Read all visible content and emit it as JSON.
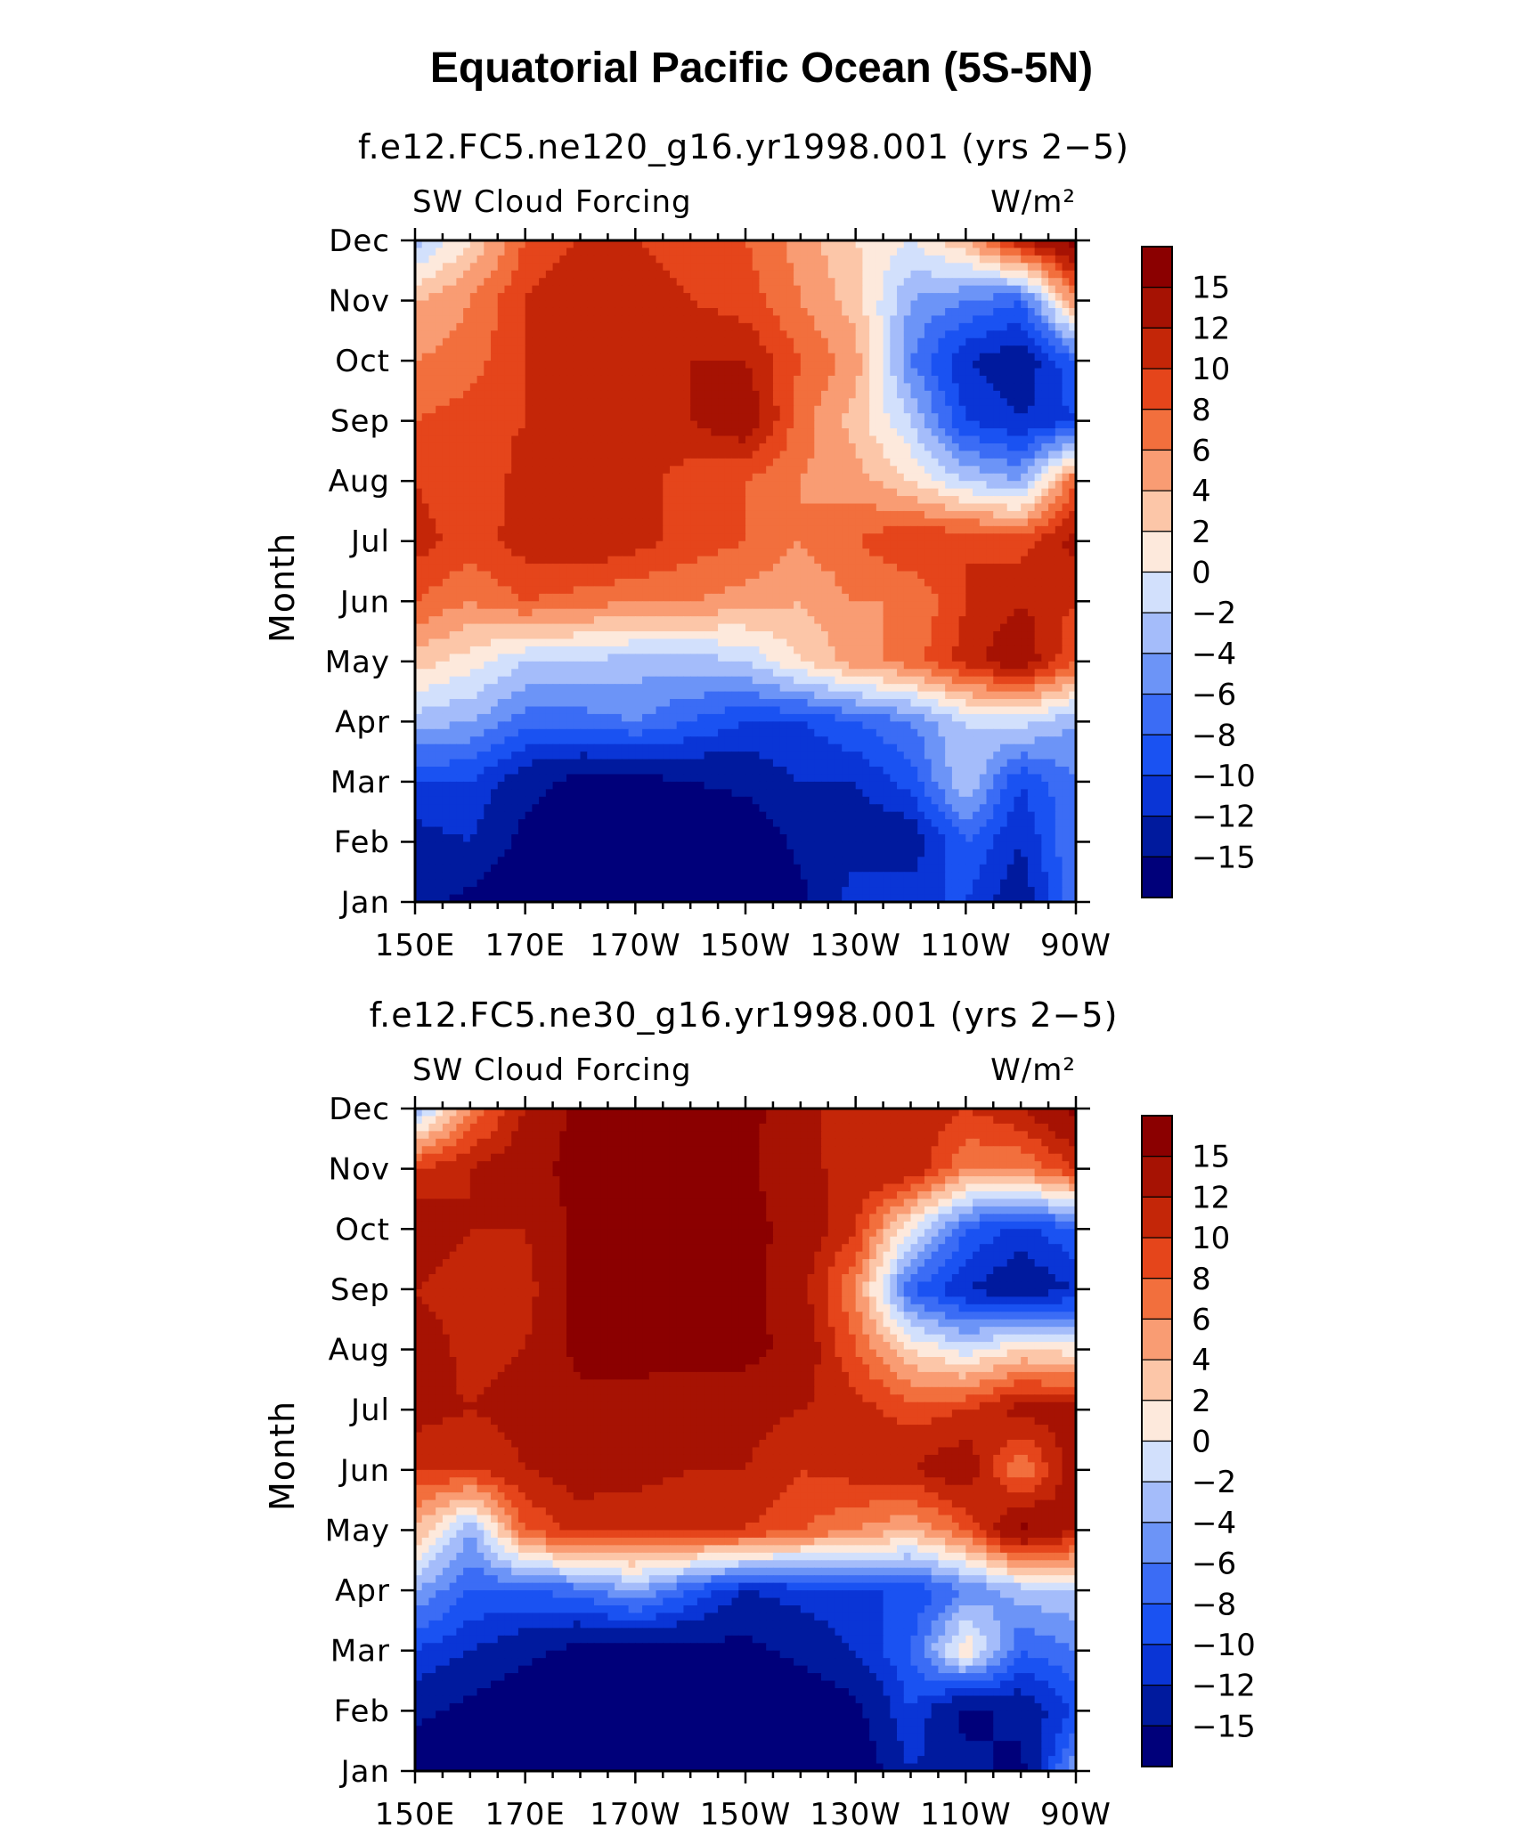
{
  "title": "Equatorial Pacific Ocean (5S-5N)",
  "chart_data": [
    {
      "type": "heatmap",
      "title": "f.e12.FC5.ne120_g16.yr1998.001 (yrs 2−5)",
      "left_label": "SW Cloud Forcing",
      "units": "W/m²",
      "ylabel": "Month",
      "x_tick_labels": [
        "150E",
        "170E",
        "170W",
        "150W",
        "130W",
        "110W",
        "90W"
      ],
      "y_tick_labels": [
        "Jan",
        "Feb",
        "Mar",
        "Apr",
        "May",
        "Jun",
        "Jul",
        "Aug",
        "Sep",
        "Oct",
        "Nov",
        "Dec"
      ],
      "xlim": [
        150,
        270
      ],
      "x": [
        150,
        160,
        170,
        180,
        190,
        200,
        210,
        220,
        230,
        240,
        250,
        260,
        270
      ],
      "z": [
        [
          -14,
          -16,
          -18,
          -18,
          -18,
          -18,
          -18,
          -16,
          -10,
          -10,
          -10,
          -14,
          -6
        ],
        [
          -13,
          -12,
          -16,
          -18,
          -18,
          -18,
          -18,
          -14,
          -14,
          -14,
          -8,
          -12,
          -6
        ],
        [
          -10,
          -10,
          -14,
          -16,
          -16,
          -15,
          -14,
          -12,
          -12,
          -9,
          -2,
          -10,
          -6
        ],
        [
          -3,
          -4,
          -7,
          -7,
          -6,
          -8,
          -10,
          -10,
          -8,
          -6,
          -2,
          -1,
          -4
        ],
        [
          3,
          1,
          -2,
          -2,
          -3,
          -3,
          -2,
          2,
          5,
          7,
          11,
          14,
          8
        ],
        [
          8,
          6,
          8,
          7,
          6,
          6,
          5,
          4,
          6,
          6,
          10,
          12,
          10
        ],
        [
          11,
          9,
          11,
          12,
          11,
          9,
          8,
          6,
          8,
          10,
          10,
          9,
          13
        ],
        [
          10,
          8,
          11,
          12,
          11,
          9,
          8,
          6,
          5,
          2,
          -2,
          -4,
          8
        ],
        [
          8,
          9,
          10,
          10,
          10,
          12,
          14,
          7,
          3,
          -2,
          -10,
          -12,
          -10
        ],
        [
          6,
          7,
          10,
          11,
          10,
          12,
          12,
          8,
          5,
          -6,
          -12,
          -14,
          -8
        ],
        [
          4,
          6,
          10,
          12,
          11,
          10,
          9,
          6,
          3,
          -4,
          -6,
          -8,
          6
        ],
        [
          -3,
          2,
          8,
          10,
          10,
          9,
          8,
          5,
          2,
          0,
          4,
          12,
          16
        ]
      ]
    },
    {
      "type": "heatmap",
      "title": "f.e12.FC5.ne30_g16.yr1998.001 (yrs 2−5)",
      "left_label": "SW Cloud Forcing",
      "units": "W/m²",
      "ylabel": "Month",
      "x_tick_labels": [
        "150E",
        "170E",
        "170W",
        "150W",
        "130W",
        "110W",
        "90W"
      ],
      "y_tick_labels": [
        "Jan",
        "Feb",
        "Mar",
        "Apr",
        "May",
        "Jun",
        "Jul",
        "Aug",
        "Sep",
        "Oct",
        "Nov",
        "Dec"
      ],
      "xlim": [
        150,
        270
      ],
      "x": [
        150,
        160,
        170,
        180,
        190,
        200,
        210,
        220,
        230,
        240,
        250,
        260,
        270
      ],
      "z": [
        [
          -18,
          -18,
          -18,
          -18,
          -18,
          -18,
          -18,
          -18,
          -18,
          -12,
          -14,
          -16,
          -4
        ],
        [
          -14,
          -16,
          -18,
          -18,
          -18,
          -18,
          -18,
          -18,
          -16,
          -10,
          -16,
          -14,
          -10
        ],
        [
          -10,
          -12,
          -14,
          -16,
          -16,
          -16,
          -16,
          -14,
          -12,
          -8,
          2,
          -8,
          -6
        ],
        [
          -4,
          -8,
          -8,
          -7,
          -4,
          -8,
          -12,
          -11,
          -10,
          -10,
          -6,
          -3,
          -2
        ],
        [
          4,
          -4,
          8,
          11,
          10,
          10,
          10,
          8,
          6,
          4,
          8,
          16,
          12
        ],
        [
          10,
          10,
          12,
          13,
          13,
          12,
          12,
          10,
          11,
          12,
          14,
          6,
          14
        ],
        [
          13,
          12,
          13,
          14,
          14,
          13,
          13,
          12,
          11,
          9,
          10,
          13,
          13
        ],
        [
          14,
          11,
          12,
          16,
          16,
          16,
          16,
          14,
          8,
          2,
          -1,
          2,
          1
        ],
        [
          12,
          10,
          11,
          16,
          16,
          16,
          16,
          13,
          6,
          -8,
          -12,
          -14,
          -12
        ],
        [
          14,
          12,
          12,
          16,
          16,
          16,
          16,
          14,
          10,
          0,
          -8,
          -11,
          -8
        ],
        [
          10,
          12,
          14,
          16,
          16,
          16,
          16,
          12,
          12,
          12,
          6,
          6,
          10
        ],
        [
          -4,
          6,
          12,
          16,
          16,
          16,
          16,
          13,
          10,
          12,
          10,
          12,
          16
        ]
      ]
    }
  ],
  "colorbar": {
    "labels": [
      "15",
      "12",
      "10",
      "8",
      "6",
      "4",
      "2",
      "0",
      "−2",
      "−4",
      "−6",
      "−8",
      "−10",
      "−12",
      "−15"
    ],
    "levels": [
      -15,
      -12,
      -10,
      -8,
      -6,
      -4,
      -2,
      0,
      2,
      4,
      6,
      8,
      10,
      12,
      15
    ],
    "colors": [
      "#00007a",
      "#001a9e",
      "#0a35d6",
      "#1a52f2",
      "#3b6cf5",
      "#6c94f7",
      "#a4bcfa",
      "#d2e0fc",
      "#fde9dc",
      "#fcc6a8",
      "#f99c73",
      "#f26f3d",
      "#e5451b",
      "#c42608",
      "#a61203",
      "#8b0000"
    ]
  }
}
